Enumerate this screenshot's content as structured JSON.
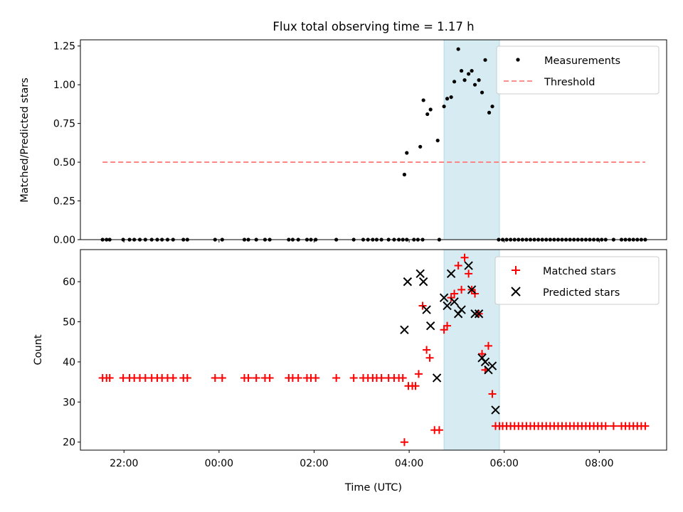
{
  "chart_data": [
    {
      "type": "scatter",
      "title": "Flux total observing time = 1.17 h",
      "ylabel": "Matched/Predicted stars",
      "xlabel": "",
      "x_unit": "hours (UTC)",
      "xlim": [
        "21:05",
        "09:25"
      ],
      "ylim": [
        0,
        1.29
      ],
      "yticks": [
        "0.00",
        "0.25",
        "0.50",
        "0.75",
        "1.00",
        "1.25"
      ],
      "highlight_span": {
        "start": "04:44",
        "end": "05:54",
        "color": "#add8e6"
      },
      "legend": {
        "placement": "upper right",
        "entries": [
          "Measurements",
          "Threshold"
        ]
      },
      "series": [
        {
          "name": "Measurements",
          "marker": "dot",
          "color": "#000000",
          "points": [
            [
              "21:33",
              0
            ],
            [
              "21:38",
              0
            ],
            [
              "21:42",
              0
            ],
            [
              "21:59",
              0
            ],
            [
              "22:07",
              0
            ],
            [
              "22:13",
              0
            ],
            [
              "22:20",
              0
            ],
            [
              "22:27",
              0
            ],
            [
              "22:35",
              0
            ],
            [
              "22:42",
              0
            ],
            [
              "22:48",
              0
            ],
            [
              "22:55",
              0
            ],
            [
              "23:02",
              0
            ],
            [
              "23:15",
              0
            ],
            [
              "23:20",
              0
            ],
            [
              "23:55",
              0
            ],
            [
              "00:04",
              0
            ],
            [
              "00:32",
              0
            ],
            [
              "00:37",
              0
            ],
            [
              "00:47",
              0
            ],
            [
              "00:58",
              0
            ],
            [
              "01:04",
              0
            ],
            [
              "01:28",
              0
            ],
            [
              "01:33",
              0
            ],
            [
              "01:40",
              0
            ],
            [
              "01:51",
              0
            ],
            [
              "01:56",
              0
            ],
            [
              "02:02",
              0
            ],
            [
              "02:28",
              0
            ],
            [
              "02:50",
              0
            ],
            [
              "03:02",
              0
            ],
            [
              "03:08",
              0
            ],
            [
              "03:14",
              0
            ],
            [
              "03:19",
              0
            ],
            [
              "03:25",
              0
            ],
            [
              "03:34",
              0
            ],
            [
              "03:41",
              0
            ],
            [
              "03:47",
              0
            ],
            [
              "03:52",
              0
            ],
            [
              "03:57",
              0
            ],
            [
              "04:06",
              0
            ],
            [
              "04:11",
              0
            ],
            [
              "04:17",
              0
            ],
            [
              "04:38",
              0
            ],
            [
              "03:54",
              0.42
            ],
            [
              "03:57",
              0.56
            ],
            [
              "04:14",
              0.6
            ],
            [
              "04:18",
              0.9
            ],
            [
              "04:23",
              0.81
            ],
            [
              "04:27",
              0.84
            ],
            [
              "04:36",
              0.64
            ],
            [
              "04:44",
              0.86
            ],
            [
              "04:48",
              0.91
            ],
            [
              "04:53",
              0.92
            ],
            [
              "04:57",
              1.02
            ],
            [
              "05:02",
              1.23
            ],
            [
              "05:06",
              1.09
            ],
            [
              "05:10",
              1.03
            ],
            [
              "05:15",
              1.07
            ],
            [
              "05:19",
              1.09
            ],
            [
              "05:23",
              1.0
            ],
            [
              "05:28",
              1.03
            ],
            [
              "05:32",
              0.95
            ],
            [
              "05:36",
              1.16
            ],
            [
              "05:41",
              0.82
            ],
            [
              "05:45",
              0.86
            ],
            [
              "05:53",
              0
            ],
            [
              "05:58",
              0
            ],
            [
              "06:03",
              0
            ],
            [
              "06:08",
              0
            ],
            [
              "06:13",
              0
            ],
            [
              "06:18",
              0
            ],
            [
              "06:23",
              0
            ],
            [
              "06:28",
              0
            ],
            [
              "06:33",
              0
            ],
            [
              "06:38",
              0
            ],
            [
              "06:43",
              0
            ],
            [
              "06:48",
              0
            ],
            [
              "06:53",
              0
            ],
            [
              "06:58",
              0
            ],
            [
              "07:03",
              0
            ],
            [
              "07:08",
              0
            ],
            [
              "07:13",
              0
            ],
            [
              "07:18",
              0
            ],
            [
              "07:23",
              0
            ],
            [
              "07:28",
              0
            ],
            [
              "07:33",
              0
            ],
            [
              "07:38",
              0
            ],
            [
              "07:43",
              0
            ],
            [
              "07:48",
              0
            ],
            [
              "07:53",
              0
            ],
            [
              "07:58",
              0
            ],
            [
              "08:03",
              0
            ],
            [
              "08:08",
              0
            ],
            [
              "08:18",
              0
            ],
            [
              "08:28",
              0
            ],
            [
              "08:33",
              0
            ],
            [
              "08:38",
              0
            ],
            [
              "08:43",
              0
            ],
            [
              "08:48",
              0
            ],
            [
              "08:53",
              0
            ],
            [
              "08:58",
              0
            ]
          ]
        },
        {
          "name": "Threshold",
          "marker": "dashed-line",
          "color": "#ff7f7f",
          "points": [
            [
              "21:33",
              0.5
            ],
            [
              "08:58",
              0.5
            ]
          ]
        }
      ]
    },
    {
      "type": "scatter",
      "title": "",
      "ylabel": "Count",
      "xlabel": "Time (UTC)",
      "xlim": [
        "21:05",
        "09:25"
      ],
      "ylim": [
        18,
        68
      ],
      "yticks": [
        "20",
        "30",
        "40",
        "50",
        "60"
      ],
      "xticks": [
        "22:00",
        "00:00",
        "02:00",
        "04:00",
        "06:00",
        "08:00"
      ],
      "highlight_span": {
        "start": "04:44",
        "end": "05:54",
        "color": "#add8e6"
      },
      "legend": {
        "placement": "upper right",
        "entries": [
          "Matched stars",
          "Predicted stars"
        ]
      },
      "series": [
        {
          "name": "Matched stars",
          "marker": "plus",
          "color": "#ff0000",
          "points": [
            [
              "21:33",
              36
            ],
            [
              "21:38",
              36
            ],
            [
              "21:42",
              36
            ],
            [
              "21:59",
              36
            ],
            [
              "22:07",
              36
            ],
            [
              "22:13",
              36
            ],
            [
              "22:20",
              36
            ],
            [
              "22:27",
              36
            ],
            [
              "22:35",
              36
            ],
            [
              "22:42",
              36
            ],
            [
              "22:48",
              36
            ],
            [
              "22:55",
              36
            ],
            [
              "23:02",
              36
            ],
            [
              "23:15",
              36
            ],
            [
              "23:20",
              36
            ],
            [
              "23:55",
              36
            ],
            [
              "00:04",
              36
            ],
            [
              "00:32",
              36
            ],
            [
              "00:37",
              36
            ],
            [
              "00:47",
              36
            ],
            [
              "00:58",
              36
            ],
            [
              "01:04",
              36
            ],
            [
              "01:28",
              36
            ],
            [
              "01:33",
              36
            ],
            [
              "01:40",
              36
            ],
            [
              "01:51",
              36
            ],
            [
              "01:56",
              36
            ],
            [
              "02:02",
              36
            ],
            [
              "02:28",
              36
            ],
            [
              "02:50",
              36
            ],
            [
              "03:02",
              36
            ],
            [
              "03:08",
              36
            ],
            [
              "03:14",
              36
            ],
            [
              "03:19",
              36
            ],
            [
              "03:25",
              36
            ],
            [
              "03:34",
              36
            ],
            [
              "03:41",
              36
            ],
            [
              "03:47",
              36
            ],
            [
              "03:52",
              36
            ],
            [
              "03:54",
              20
            ],
            [
              "03:59",
              34
            ],
            [
              "04:04",
              34
            ],
            [
              "04:08",
              34
            ],
            [
              "04:12",
              37
            ],
            [
              "04:17",
              54
            ],
            [
              "04:22",
              43
            ],
            [
              "04:26",
              41
            ],
            [
              "04:32",
              23
            ],
            [
              "04:38",
              23
            ],
            [
              "04:44",
              48
            ],
            [
              "04:48",
              49
            ],
            [
              "04:53",
              56
            ],
            [
              "04:57",
              57
            ],
            [
              "05:02",
              64
            ],
            [
              "05:06",
              58
            ],
            [
              "05:10",
              66
            ],
            [
              "05:15",
              62
            ],
            [
              "05:19",
              58
            ],
            [
              "05:23",
              57
            ],
            [
              "05:28",
              52
            ],
            [
              "05:32",
              42
            ],
            [
              "05:36",
              38
            ],
            [
              "05:40",
              44
            ],
            [
              "05:45",
              32
            ],
            [
              "05:49",
              24
            ],
            [
              "05:54",
              24
            ],
            [
              "05:58",
              24
            ],
            [
              "06:03",
              24
            ],
            [
              "06:08",
              24
            ],
            [
              "06:13",
              24
            ],
            [
              "06:18",
              24
            ],
            [
              "06:23",
              24
            ],
            [
              "06:28",
              24
            ],
            [
              "06:33",
              24
            ],
            [
              "06:38",
              24
            ],
            [
              "06:43",
              24
            ],
            [
              "06:48",
              24
            ],
            [
              "06:53",
              24
            ],
            [
              "06:58",
              24
            ],
            [
              "07:03",
              24
            ],
            [
              "07:08",
              24
            ],
            [
              "07:13",
              24
            ],
            [
              "07:18",
              24
            ],
            [
              "07:23",
              24
            ],
            [
              "07:28",
              24
            ],
            [
              "07:33",
              24
            ],
            [
              "07:38",
              24
            ],
            [
              "07:43",
              24
            ],
            [
              "07:48",
              24
            ],
            [
              "07:53",
              24
            ],
            [
              "07:58",
              24
            ],
            [
              "08:03",
              24
            ],
            [
              "08:08",
              24
            ],
            [
              "08:18",
              24
            ],
            [
              "08:28",
              24
            ],
            [
              "08:33",
              24
            ],
            [
              "08:38",
              24
            ],
            [
              "08:43",
              24
            ],
            [
              "08:48",
              24
            ],
            [
              "08:53",
              24
            ],
            [
              "08:58",
              24
            ]
          ]
        },
        {
          "name": "Predicted stars",
          "marker": "x",
          "color": "#000000",
          "points": [
            [
              "03:54",
              48
            ],
            [
              "03:58",
              60
            ],
            [
              "04:14",
              62
            ],
            [
              "04:18",
              60
            ],
            [
              "04:22",
              53
            ],
            [
              "04:27",
              49
            ],
            [
              "04:35",
              36
            ],
            [
              "04:44",
              56
            ],
            [
              "04:48",
              54
            ],
            [
              "04:53",
              62
            ],
            [
              "04:57",
              55
            ],
            [
              "05:02",
              52
            ],
            [
              "05:06",
              53
            ],
            [
              "05:15",
              64
            ],
            [
              "05:19",
              58
            ],
            [
              "05:23",
              52
            ],
            [
              "05:28",
              52
            ],
            [
              "05:32",
              41
            ],
            [
              "05:36",
              40
            ],
            [
              "05:40",
              38
            ],
            [
              "05:45",
              39
            ],
            [
              "05:49",
              28
            ]
          ]
        }
      ]
    }
  ]
}
